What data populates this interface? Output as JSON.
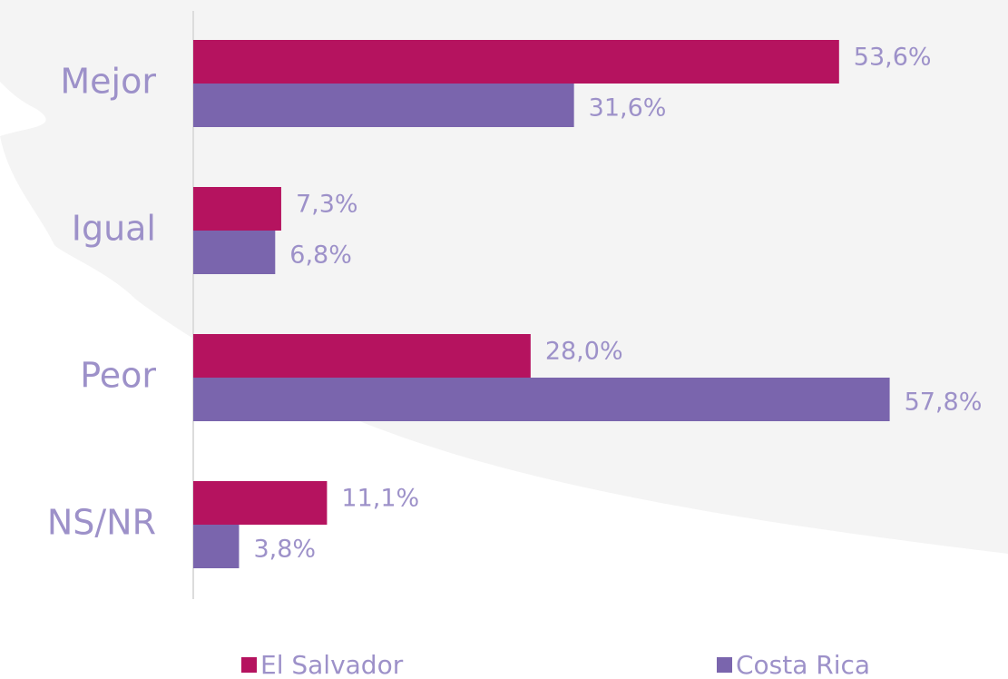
{
  "chart_data": {
    "type": "bar",
    "orientation": "horizontal",
    "categories": [
      "Mejor",
      "Igual",
      "Peor",
      "NS/NR"
    ],
    "series": [
      {
        "name": "El Salvador",
        "color": "#b5135f",
        "values": [
          53.6,
          7.3,
          28.0,
          11.1
        ],
        "value_labels": [
          "53,6%",
          "7,3%",
          "28,0%",
          "11,1%"
        ]
      },
      {
        "name": "Costa Rica",
        "color": "#7a65ad",
        "values": [
          31.6,
          6.8,
          57.8,
          3.8
        ],
        "value_labels": [
          "31,6%",
          "6,8%",
          "57,8%",
          "3,8%"
        ]
      }
    ]
  }
}
